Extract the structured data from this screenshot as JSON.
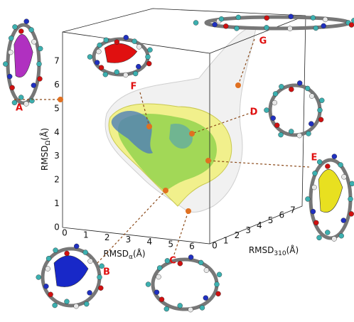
{
  "axes": {
    "x": {
      "label": {
        "base": "RMSD",
        "sub": "α",
        "unit": "(Å)"
      },
      "ticks": [
        0,
        1,
        2,
        3,
        4,
        5,
        6
      ]
    },
    "y": {
      "label": {
        "base": "RMSD",
        "sub": "310",
        "unit": "(Å)"
      },
      "ticks": [
        0,
        1,
        2,
        3,
        4,
        5,
        6,
        7
      ]
    },
    "z": {
      "label": {
        "base": "RMSD",
        "sub": "Ω",
        "unit": "(Å)"
      },
      "ticks": [
        0,
        1,
        2,
        3,
        4,
        5,
        6,
        7
      ]
    }
  },
  "structures": [
    {
      "label": "A"
    },
    {
      "label": "B"
    },
    {
      "label": "C"
    },
    {
      "label": "D"
    },
    {
      "label": "E"
    },
    {
      "label": "F"
    },
    {
      "label": "G"
    }
  ]
}
